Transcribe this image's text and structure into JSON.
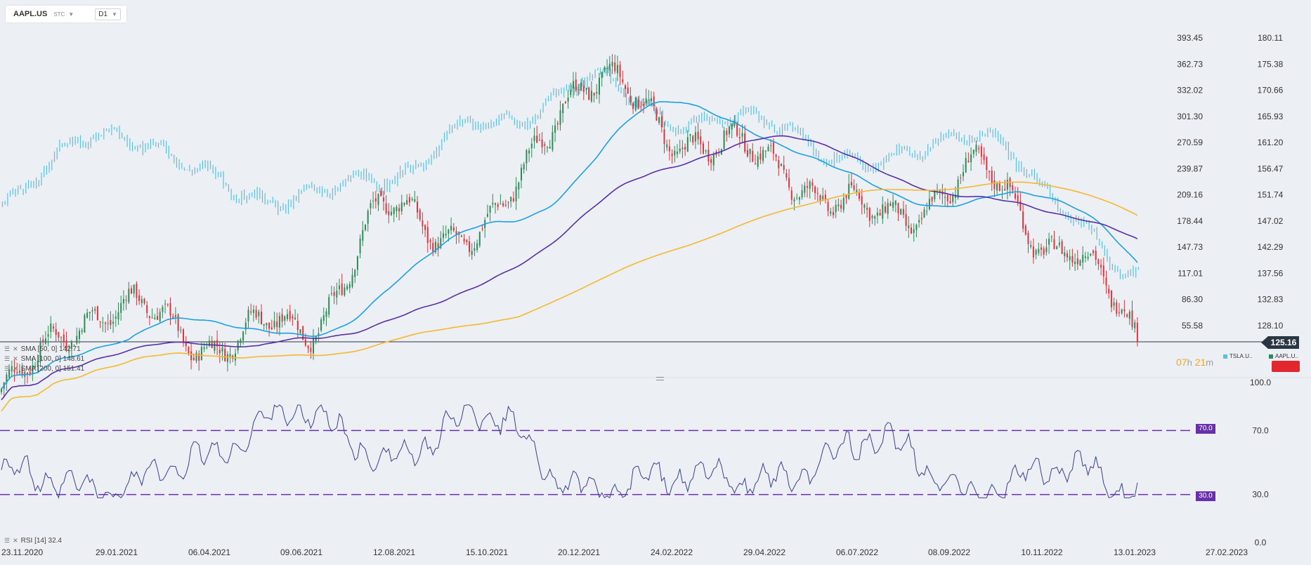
{
  "toolbar": {
    "symbol": "AAPL.US",
    "type": "STC",
    "timeframe": "D1"
  },
  "axes": {
    "left_ticks": [
      "393.45",
      "362.73",
      "332.02",
      "301.30",
      "270.59",
      "239.87",
      "209.16",
      "178.44",
      "147.73",
      "117.01",
      "86.30",
      "55.58"
    ],
    "right_ticks": [
      "180.11",
      "175.38",
      "170.66",
      "165.93",
      "161.20",
      "156.47",
      "151.74",
      "147.02",
      "142.29",
      "137.56",
      "132.83",
      "128.10"
    ],
    "current_price": "125.16",
    "rsi_ticks": [
      "100.0",
      "70.0",
      "30.0",
      "0.0"
    ],
    "date_ticks": [
      "23.11.2020",
      "29.01.2021",
      "06.04.2021",
      "09.06.2021",
      "12.08.2021",
      "15.10.2021",
      "20.12.2021",
      "24.02.2022",
      "29.04.2022",
      "06.07.2022",
      "08.09.2022",
      "10.11.2022",
      "13.01.2023",
      "27.02.2023"
    ]
  },
  "legend": {
    "sma50": "SMA [50, 0] 142.71",
    "sma100": "SMA [100, 0] 148.61",
    "sma200": "SMA [200, 0] 151.41",
    "rsi": "RSI [14]  32.4"
  },
  "overlay": {
    "tsla_label": "TSLA.U..",
    "aapl_label": "AAPL.U.."
  },
  "countdown": {
    "hours": "07",
    "h_unit": "h",
    "minutes": "21",
    "m_unit": "m"
  },
  "rsi_levels": {
    "upper": "70.0",
    "lower": "30.0"
  },
  "colors": {
    "up": "#2e8b57",
    "down": "#d9363e",
    "compare": "#5bc0de",
    "sma50": "#1ba1e2",
    "sma100": "#5a2ea6",
    "sma200": "#f5b82e",
    "rsi_line": "#3a3f8f",
    "rsi_level": "#6a2fb0"
  },
  "chart_data": [
    {
      "type": "candlestick",
      "title": "AAPL.US",
      "timeframe": "D1",
      "x_range": [
        "23.11.2020",
        "27.02.2023"
      ],
      "y_range_right": [
        125.16,
        180.11
      ],
      "current_price": 125.16,
      "anchors_close": [
        {
          "date": "23.11.2020",
          "value": 116
        },
        {
          "date": "29.01.2021",
          "value": 132
        },
        {
          "date": "06.04.2021",
          "value": 126
        },
        {
          "date": "09.06.2021",
          "value": 127
        },
        {
          "date": "12.08.2021",
          "value": 148
        },
        {
          "date": "15.10.2021",
          "value": 145
        },
        {
          "date": "20.12.2021",
          "value": 173
        },
        {
          "date": "24.02.2022",
          "value": 163
        },
        {
          "date": "29.04.2022",
          "value": 157
        },
        {
          "date": "06.07.2022",
          "value": 147
        },
        {
          "date": "08.09.2022",
          "value": 155
        },
        {
          "date": "10.11.2022",
          "value": 143
        },
        {
          "date": "16.12.2022",
          "value": 131
        },
        {
          "date": "30.12.2022",
          "value": 125
        }
      ],
      "indicators": [
        {
          "name": "SMA [50, 0]",
          "last": 142.71
        },
        {
          "name": "SMA [100, 0]",
          "last": 148.61
        },
        {
          "name": "SMA [200, 0]",
          "last": 151.41
        }
      ],
      "compare": {
        "name": "TSLA.U..",
        "y_range_left": [
          55.58,
          393.45
        ],
        "anchors": [
          {
            "date": "23.11.2020",
            "value": 196
          },
          {
            "date": "29.01.2021",
            "value": 290
          },
          {
            "date": "06.04.2021",
            "value": 233
          },
          {
            "date": "09.06.2021",
            "value": 200
          },
          {
            "date": "12.08.2021",
            "value": 236
          },
          {
            "date": "15.10.2021",
            "value": 290
          },
          {
            "date": "20.12.2021",
            "value": 340
          },
          {
            "date": "24.02.2022",
            "value": 300
          },
          {
            "date": "29.04.2022",
            "value": 290
          },
          {
            "date": "06.07.2022",
            "value": 240
          },
          {
            "date": "08.09.2022",
            "value": 290
          },
          {
            "date": "10.11.2022",
            "value": 190
          },
          {
            "date": "30.12.2022",
            "value": 117
          }
        ]
      }
    },
    {
      "type": "line",
      "name": "RSI [14]",
      "last": 32.4,
      "ylim": [
        0,
        100
      ],
      "levels": [
        70,
        30
      ],
      "anchors": [
        {
          "date": "23.11.2020",
          "value": 45
        },
        {
          "date": "29.01.2021",
          "value": 32
        },
        {
          "date": "06.04.2021",
          "value": 52
        },
        {
          "date": "09.06.2021",
          "value": 83
        },
        {
          "date": "12.08.2021",
          "value": 52
        },
        {
          "date": "15.10.2021",
          "value": 82
        },
        {
          "date": "20.12.2021",
          "value": 32
        },
        {
          "date": "24.02.2022",
          "value": 42
        },
        {
          "date": "29.04.2022",
          "value": 38
        },
        {
          "date": "06.07.2022",
          "value": 65
        },
        {
          "date": "08.09.2022",
          "value": 31
        },
        {
          "date": "10.11.2022",
          "value": 48
        },
        {
          "date": "30.12.2022",
          "value": 32
        }
      ]
    }
  ]
}
